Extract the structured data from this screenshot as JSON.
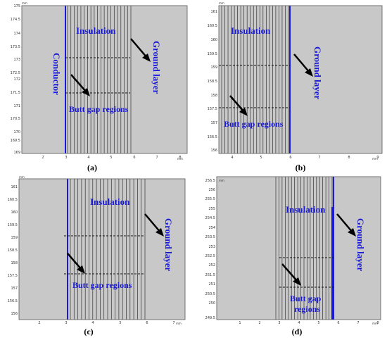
{
  "colors": {
    "plot_bg": "#c8c8c8",
    "frame": "#555555",
    "label_blue": "#1a1ad6",
    "conductor_line": "#1a1ad6",
    "layer_line": "#333333",
    "gap_line": "#111111",
    "arrow": "#000000"
  },
  "panels": [
    {
      "caption": "(a)",
      "unit_top": "mm",
      "unit_bottom": "mm",
      "x_ticks": [
        "2",
        "3",
        "4",
        "5",
        "6",
        "7",
        "8"
      ],
      "y_ticks": [
        "175",
        "174.5",
        "174",
        "173.5",
        "173",
        "172.5",
        "172",
        "171.5",
        "171",
        "170.5",
        "170",
        "169.5",
        "169"
      ],
      "labels": {
        "insulation": "Insulation",
        "conductor": "Conductor",
        "ground": "Ground layer",
        "butt_gap": "Butt gap regions"
      }
    },
    {
      "caption": "(b)",
      "unit_top": "mm",
      "unit_bottom": "mm",
      "x_ticks": [
        "4",
        "5",
        "6",
        "7",
        "8",
        "9"
      ],
      "y_ticks": [
        "161",
        "160.5",
        "160",
        "159.5",
        "159",
        "158.5",
        "158",
        "157.5",
        "157",
        "156.5",
        "156"
      ],
      "labels": {
        "insulation": "Insulation",
        "ground": "Ground layer",
        "butt_gap": "Butt gap regions"
      }
    },
    {
      "caption": "(c)",
      "unit_top": "mm",
      "unit_bottom": "mm",
      "x_ticks": [
        "2",
        "3",
        "4",
        "5",
        "6",
        "7"
      ],
      "y_ticks": [
        "161",
        "160.5",
        "160",
        "159.5",
        "159",
        "158.5",
        "158",
        "157.5",
        "157",
        "156.5",
        "156"
      ],
      "labels": {
        "insulation": "Insulation",
        "ground": "Ground layer",
        "butt_gap": "Butt gap regions"
      }
    },
    {
      "caption": "(d)",
      "unit_top": "mm",
      "unit_bottom": "mm",
      "x_ticks": [
        "1",
        "2",
        "3",
        "4",
        "5",
        "6",
        "7",
        "8"
      ],
      "y_ticks": [
        "256.5",
        "256",
        "255.5",
        "255",
        "254.5",
        "254",
        "253.5",
        "253",
        "252.5",
        "252",
        "251.5",
        "251",
        "250.5",
        "250",
        "249.5"
      ],
      "labels": {
        "insulation": "Insulation",
        "ground": "Ground layer",
        "butt_gap_1": "Butt gap",
        "butt_gap_2": "regions"
      }
    }
  ]
}
